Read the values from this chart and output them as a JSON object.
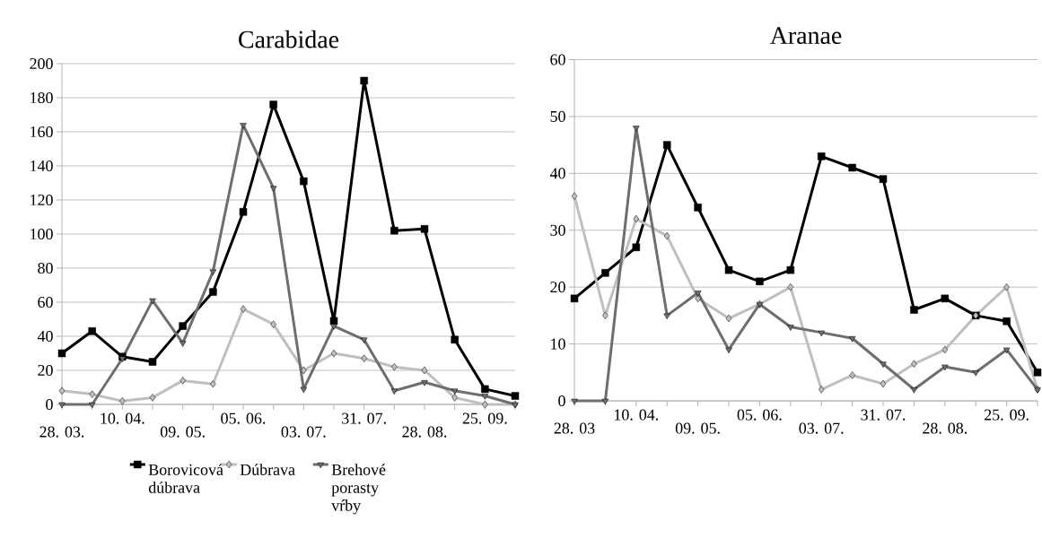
{
  "chart_data": [
    {
      "type": "line",
      "title": "Carabidae",
      "categories": [
        "28. 03.",
        null,
        "10. 04.",
        null,
        "09. 05.",
        null,
        "05. 06.",
        null,
        "03. 07.",
        null,
        "31. 07.",
        null,
        "28. 08.",
        null,
        "25. 09.",
        null
      ],
      "series": [
        {
          "name": "Borovicová dúbrava",
          "color": "#000000",
          "marker": "square",
          "values": [
            30,
            43,
            28,
            25,
            46,
            66,
            113,
            176,
            131,
            49,
            190,
            102,
            103,
            38,
            9,
            5
          ]
        },
        {
          "name": "Dúbrava",
          "color": "#bfbfbf",
          "marker": "diamond",
          "values": [
            8,
            6,
            2,
            4,
            14,
            12,
            56,
            47,
            20,
            30,
            27,
            22,
            20,
            4,
            0,
            0
          ]
        },
        {
          "name": "Brehové porasty vŕby",
          "color": "#6e6e6e",
          "marker": "triangle",
          "values": [
            0,
            0,
            27,
            61,
            36,
            78,
            164,
            127,
            9,
            46,
            38,
            8,
            13,
            8,
            5,
            0
          ]
        }
      ],
      "ylim": [
        0,
        200
      ],
      "yticks": [
        0,
        20,
        40,
        60,
        80,
        100,
        120,
        140,
        160,
        180,
        200
      ],
      "grid": "y",
      "legend": "bottom"
    },
    {
      "type": "line",
      "title": "Aranae",
      "categories": [
        "28. 03",
        null,
        "10. 04.",
        null,
        "09. 05.",
        null,
        "05. 06.",
        null,
        "03. 07.",
        null,
        "31. 07.",
        null,
        "28. 08.",
        null,
        "25. 09.",
        null
      ],
      "series": [
        {
          "color": "#000000",
          "marker": "square",
          "values": [
            18,
            22.5,
            27,
            45,
            34,
            23,
            21,
            23,
            43,
            41,
            39,
            16,
            18,
            15,
            14,
            5
          ]
        },
        {
          "color": "#bfbfbf",
          "marker": "diamond",
          "values": [
            36,
            15,
            32,
            29,
            18,
            14.5,
            17,
            20,
            2,
            4.5,
            3,
            6.5,
            9,
            15,
            20,
            2
          ]
        },
        {
          "color": "#6e6e6e",
          "marker": "triangle",
          "values": [
            0,
            0,
            48,
            15,
            19,
            9,
            17,
            13,
            12,
            11,
            6.5,
            2,
            6,
            5,
            9,
            2
          ]
        }
      ],
      "ylim": [
        0,
        60
      ],
      "yticks": [
        0,
        10,
        20,
        30,
        40,
        50,
        60
      ],
      "grid": "y",
      "legend": false
    }
  ]
}
